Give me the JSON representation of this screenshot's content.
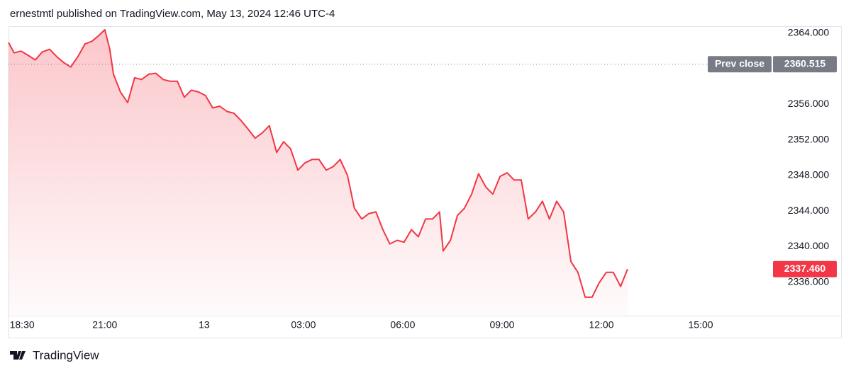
{
  "chart_data": {
    "type": "area",
    "title": "ernestmtl published on TradingView.com, May 13, 2024 12:46 UTC-4",
    "source": "TradingView",
    "color": "#f23645",
    "grid": false,
    "xlim": [
      18.09,
      41.12
    ],
    "xticks": [
      {
        "value": 18.5,
        "label": "18:30"
      },
      {
        "value": 21,
        "label": "21:00"
      },
      {
        "value": 24,
        "label": "13"
      },
      {
        "value": 27,
        "label": "03:00"
      },
      {
        "value": 30,
        "label": "06:00"
      },
      {
        "value": 33,
        "label": "09:00"
      },
      {
        "value": 36,
        "label": "12:00"
      },
      {
        "value": 39,
        "label": "15:00"
      }
    ],
    "ylim": [
      2332.3,
      2364.8
    ],
    "yticks": [
      {
        "value": 2336,
        "label": "2336.000"
      },
      {
        "value": 2340,
        "label": "2340.000"
      },
      {
        "value": 2344,
        "label": "2344.000"
      },
      {
        "value": 2348,
        "label": "2348.000"
      },
      {
        "value": 2352,
        "label": "2352.000"
      },
      {
        "value": 2356,
        "label": "2356.000"
      },
      {
        "value": 2364,
        "label": "2364.000"
      }
    ],
    "reference_line": {
      "name": "Prev close",
      "value": 2360.515,
      "label": "2360.515",
      "color": "#787b86"
    },
    "last_price": {
      "value": 2337.46,
      "label": "2337.460"
    },
    "series": [
      {
        "x": [
          18.09,
          18.26,
          18.47,
          18.69,
          18.9,
          19.11,
          19.33,
          19.54,
          19.76,
          19.97,
          20.19,
          20.4,
          20.61,
          20.83,
          21.0,
          21.15,
          21.26,
          21.47,
          21.69,
          21.9,
          22.11,
          22.33,
          22.54,
          22.76,
          22.97,
          23.19,
          23.4,
          23.61,
          23.83,
          24.04,
          24.26,
          24.47,
          24.69,
          24.9,
          25.11,
          25.33,
          25.54,
          25.76,
          25.97,
          26.19,
          26.4,
          26.61,
          26.83,
          27.04,
          27.26,
          27.47,
          27.69,
          27.9,
          28.11,
          28.33,
          28.54,
          28.76,
          28.97,
          29.19,
          29.4,
          29.61,
          29.83,
          30.04,
          30.26,
          30.47,
          30.69,
          30.9,
          31.11,
          31.22,
          31.44,
          31.65,
          31.86,
          32.08,
          32.29,
          32.51,
          32.72,
          32.94,
          33.15,
          33.36,
          33.58,
          33.79,
          34.01,
          34.22,
          34.43,
          34.65,
          34.86,
          35.08,
          35.29,
          35.51,
          35.72,
          35.93,
          36.15,
          36.36,
          36.58,
          36.79
        ],
        "values": [
          2362.97,
          2361.8,
          2362.0,
          2361.5,
          2361.0,
          2361.9,
          2362.2,
          2361.4,
          2360.7,
          2360.2,
          2361.4,
          2362.8,
          2363.1,
          2363.8,
          2364.4,
          2362.2,
          2359.4,
          2357.4,
          2356.2,
          2359.0,
          2358.8,
          2359.4,
          2359.5,
          2358.8,
          2358.6,
          2358.6,
          2356.8,
          2357.6,
          2357.4,
          2357.0,
          2355.6,
          2355.8,
          2355.2,
          2355.0,
          2354.2,
          2353.2,
          2352.2,
          2352.8,
          2353.6,
          2350.6,
          2351.8,
          2351.0,
          2348.6,
          2349.4,
          2349.8,
          2349.8,
          2348.6,
          2349.0,
          2349.8,
          2348.0,
          2344.3,
          2343.1,
          2343.7,
          2343.9,
          2341.9,
          2340.3,
          2340.7,
          2340.5,
          2341.9,
          2341.1,
          2343.1,
          2343.1,
          2343.9,
          2339.5,
          2340.7,
          2343.5,
          2344.3,
          2345.9,
          2348.2,
          2346.7,
          2345.9,
          2347.9,
          2348.3,
          2347.5,
          2347.5,
          2343.1,
          2343.9,
          2345.1,
          2343.1,
          2345.1,
          2343.9,
          2338.3,
          2337.1,
          2334.3,
          2334.3,
          2335.9,
          2337.1,
          2337.1,
          2335.5,
          2337.46
        ]
      }
    ]
  }
}
